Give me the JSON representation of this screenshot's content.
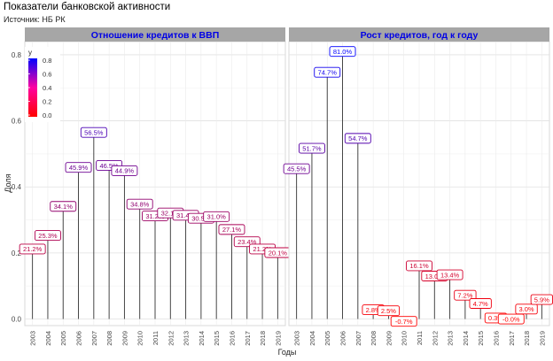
{
  "title": "Показатели банковской активности",
  "subtitle": "Источник: НБ РК",
  "chart_data": [
    {
      "type": "lollipop",
      "panel_title": "Отношение кредитов к ВВП",
      "x": [
        "2003",
        "2004",
        "2005",
        "2006",
        "2007",
        "2008",
        "2009",
        "2010",
        "2011",
        "2012",
        "2013",
        "2014",
        "2015",
        "2016",
        "2017",
        "2018",
        "2019"
      ],
      "values": [
        0.212,
        0.253,
        0.341,
        0.459,
        0.565,
        0.465,
        0.449,
        0.348,
        0.312,
        0.321,
        0.314,
        0.305,
        0.31,
        0.271,
        0.234,
        0.212,
        0.201
      ],
      "labels": [
        "21.2%",
        "25.3%",
        "34.1%",
        "45.9%",
        "56.5%",
        "46.5%",
        "44.9%",
        "34.8%",
        "31.2%",
        "32.1%",
        "31.4%",
        "30.5%",
        "31.0%",
        "27.1%",
        "23.4%",
        "21.2%",
        "20.1%"
      ],
      "ylim": [
        -0.02,
        0.84
      ],
      "yticks": [
        "0.0",
        "0.2",
        "0.4",
        "0.6",
        "0.8"
      ],
      "color_scale": {
        "low": "#ff0000",
        "high": "#0000ff"
      }
    },
    {
      "type": "lollipop",
      "panel_title": "Рост кредитов, год к году",
      "x": [
        "2003",
        "2004",
        "2005",
        "2006",
        "2007",
        "2008",
        "2009",
        "2010",
        "2011",
        "2012",
        "2013",
        "2014",
        "2015",
        "2016",
        "2017",
        "2018",
        "2019"
      ],
      "values": [
        0.455,
        0.517,
        0.747,
        0.81,
        0.547,
        0.028,
        0.025,
        -0.007,
        0.161,
        0.13,
        0.134,
        0.072,
        0.047,
        0.003,
        -0.0,
        0.03,
        0.059
      ],
      "labels": [
        "45.5%",
        "51.7%",
        "74.7%",
        "81.0%",
        "54.7%",
        "2.8%",
        "2.5%",
        "-0.7%",
        "16.1%",
        "13.0%",
        "13.4%",
        "7.2%",
        "4.7%",
        "0.3%",
        "-0.0%",
        "3.0%",
        "5.9%"
      ],
      "ylim": [
        -0.02,
        0.84
      ],
      "color_scale": {
        "low": "#ff0000",
        "high": "#0000ff"
      }
    }
  ],
  "xlabel": "Годы",
  "ylabel": "Доля",
  "legend": {
    "title": "y",
    "ticks": [
      "0.8",
      "0.6",
      "0.4",
      "0.2",
      "0.0"
    ],
    "placement": "top-left inside"
  }
}
